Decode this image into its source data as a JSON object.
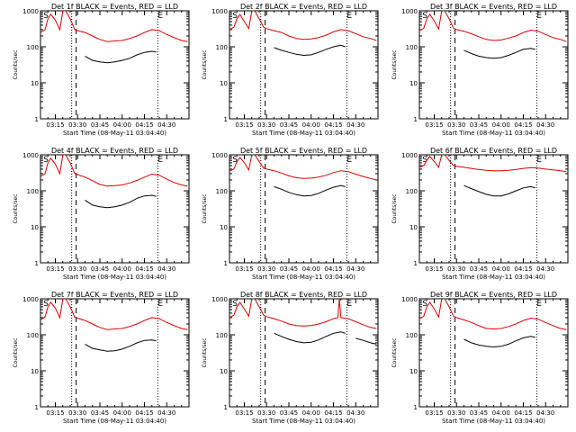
{
  "chart_data": {
    "type": "line",
    "shared": {
      "xlabel": "Start Time (08-May-11 03:04:40)",
      "ylabel": "Counts/sec",
      "xticks": [
        "03:15",
        "03:30",
        "03:45",
        "04:00",
        "04:15",
        "04:30"
      ],
      "xtick_minutes": [
        15,
        30,
        45,
        60,
        75,
        90
      ],
      "xlim_minutes": [
        5,
        105
      ],
      "yscale": "log",
      "ylim": [
        1,
        1000
      ],
      "yticks": [
        "1",
        "10",
        "100",
        "1000"
      ],
      "marker_labels": [
        "S",
        "E"
      ],
      "colors": {
        "events": "#000000",
        "lld": "#dd0000"
      }
    },
    "panels": [
      {
        "title": "Det 1f BLACK = Events, RED = LLD",
        "dotted_lines": [
          26,
          84
        ],
        "dashed_line": 29,
        "s_minute": 7,
        "e_minute": 84,
        "series": [
          {
            "name": "Events",
            "x": [
              29,
              35,
              40,
              45,
              50,
              55,
              60,
              65,
              70,
              75,
              80,
              83
            ],
            "y": [
              null,
              55,
              42,
              38,
              36,
              38,
              42,
              48,
              60,
              70,
              75,
              72
            ]
          },
          {
            "name": "LLD",
            "x": [
              5,
              8,
              10,
              12,
              15,
              18,
              20,
              22,
              25,
              28,
              30,
              35,
              40,
              45,
              50,
              55,
              60,
              65,
              70,
              75,
              80,
              85,
              90,
              95,
              100,
              104
            ],
            "y": [
              250,
              300,
              600,
              800,
              550,
              300,
              1000,
              1000,
              600,
              300,
              280,
              250,
              200,
              160,
              140,
              145,
              150,
              170,
              200,
              250,
              300,
              280,
              220,
              180,
              150,
              140
            ]
          }
        ]
      },
      {
        "title": "Det 2f BLACK = Events, RED = LLD",
        "dotted_lines": [
          26,
          84
        ],
        "dashed_line": 29,
        "s_minute": 7,
        "e_minute": 84,
        "series": [
          {
            "name": "Events",
            "x": [
              29,
              35,
              40,
              45,
              50,
              55,
              60,
              65,
              70,
              75,
              80,
              83
            ],
            "y": [
              null,
              95,
              80,
              70,
              62,
              58,
              60,
              70,
              85,
              100,
              110,
              100
            ]
          },
          {
            "name": "LLD",
            "x": [
              5,
              8,
              10,
              12,
              15,
              18,
              20,
              22,
              25,
              28,
              30,
              35,
              40,
              45,
              50,
              55,
              60,
              65,
              70,
              75,
              80,
              85,
              90,
              95,
              100,
              104
            ],
            "y": [
              300,
              350,
              600,
              800,
              500,
              320,
              1000,
              1000,
              600,
              350,
              320,
              280,
              250,
              200,
              170,
              160,
              165,
              180,
              210,
              260,
              300,
              280,
              230,
              190,
              170,
              150
            ]
          }
        ]
      },
      {
        "title": "Det 3f BLACK = Events, RED = LLD",
        "dotted_lines": [
          26,
          84
        ],
        "dashed_line": 29,
        "s_minute": 7,
        "e_minute": 84,
        "series": [
          {
            "name": "Events",
            "x": [
              29,
              35,
              40,
              45,
              50,
              55,
              60,
              65,
              70,
              75,
              80,
              83
            ],
            "y": [
              null,
              80,
              65,
              55,
              50,
              48,
              50,
              58,
              70,
              85,
              90,
              85
            ]
          },
          {
            "name": "LLD",
            "x": [
              5,
              8,
              10,
              12,
              15,
              18,
              20,
              22,
              25,
              28,
              30,
              35,
              40,
              45,
              50,
              55,
              60,
              65,
              70,
              75,
              80,
              85,
              90,
              95,
              100,
              104
            ],
            "y": [
              280,
              330,
              600,
              800,
              520,
              310,
              1000,
              1000,
              600,
              330,
              300,
              270,
              230,
              190,
              160,
              150,
              155,
              175,
              200,
              250,
              290,
              270,
              220,
              180,
              160,
              140
            ]
          }
        ]
      },
      {
        "title": "Det 4f BLACK = Events, RED = LLD",
        "dotted_lines": [
          26,
          84
        ],
        "dashed_line": 29,
        "s_minute": 7,
        "e_minute": 84,
        "series": [
          {
            "name": "Events",
            "x": [
              29,
              35,
              40,
              45,
              50,
              55,
              60,
              65,
              70,
              75,
              80,
              83
            ],
            "y": [
              null,
              55,
              40,
              36,
              34,
              36,
              40,
              48,
              62,
              72,
              75,
              70
            ]
          },
          {
            "name": "LLD",
            "x": [
              5,
              8,
              10,
              12,
              15,
              18,
              20,
              22,
              25,
              28,
              30,
              35,
              40,
              45,
              50,
              55,
              60,
              65,
              70,
              75,
              80,
              85,
              90,
              95,
              100,
              104
            ],
            "y": [
              250,
              300,
              600,
              800,
              550,
              300,
              1000,
              1000,
              600,
              300,
              280,
              240,
              190,
              150,
              135,
              140,
              145,
              165,
              195,
              240,
              290,
              270,
              210,
              170,
              145,
              135
            ]
          }
        ]
      },
      {
        "title": "Det 5f BLACK = Events, RED = LLD",
        "dotted_lines": [
          26,
          84
        ],
        "dashed_line": 29,
        "s_minute": 7,
        "e_minute": 84,
        "series": [
          {
            "name": "Events",
            "x": [
              29,
              35,
              40,
              45,
              50,
              55,
              60,
              65,
              70,
              75,
              80,
              83
            ],
            "y": [
              null,
              130,
              110,
              90,
              78,
              72,
              74,
              85,
              105,
              125,
              140,
              130
            ]
          },
          {
            "name": "LLD",
            "x": [
              5,
              8,
              10,
              12,
              15,
              18,
              20,
              22,
              25,
              28,
              30,
              35,
              40,
              45,
              50,
              55,
              60,
              65,
              70,
              75,
              80,
              85,
              90,
              95,
              100,
              104
            ],
            "y": [
              350,
              400,
              650,
              850,
              600,
              380,
              1000,
              1000,
              650,
              430,
              400,
              360,
              310,
              260,
              230,
              220,
              225,
              240,
              270,
              320,
              360,
              340,
              290,
              250,
              220,
              200
            ]
          }
        ]
      },
      {
        "title": "Det 6f BLACK = Events, RED = LLD",
        "dotted_lines": [
          26,
          84
        ],
        "dashed_line": 29,
        "s_minute": 7,
        "e_minute": 84,
        "series": [
          {
            "name": "Events",
            "x": [
              29,
              35,
              40,
              45,
              50,
              55,
              60,
              65,
              70,
              75,
              80,
              83
            ],
            "y": [
              null,
              140,
              115,
              95,
              80,
              72,
              72,
              82,
              100,
              120,
              130,
              120
            ]
          },
          {
            "name": "LLD",
            "x": [
              5,
              8,
              10,
              12,
              15,
              18,
              20,
              22,
              25,
              28,
              30,
              35,
              40,
              45,
              50,
              55,
              60,
              65,
              70,
              75,
              80,
              85,
              90,
              95,
              100,
              104
            ],
            "y": [
              450,
              500,
              700,
              900,
              650,
              450,
              1000,
              1000,
              700,
              500,
              480,
              450,
              420,
              390,
              370,
              360,
              360,
              370,
              390,
              420,
              440,
              430,
              400,
              380,
              360,
              340
            ]
          }
        ]
      },
      {
        "title": "Det 7f BLACK = Events, RED = LLD",
        "dotted_lines": [
          26,
          84
        ],
        "dashed_line": 29,
        "s_minute": 7,
        "e_minute": 84,
        "series": [
          {
            "name": "Events",
            "x": [
              29,
              35,
              40,
              45,
              50,
              55,
              60,
              65,
              70,
              75,
              80,
              83
            ],
            "y": [
              null,
              55,
              42,
              38,
              35,
              36,
              40,
              48,
              60,
              70,
              72,
              68
            ]
          },
          {
            "name": "LLD",
            "x": [
              5,
              8,
              10,
              12,
              15,
              18,
              20,
              22,
              25,
              28,
              30,
              35,
              40,
              45,
              50,
              55,
              60,
              65,
              70,
              75,
              80,
              85,
              90,
              95,
              100,
              104
            ],
            "y": [
              260,
              310,
              600,
              800,
              550,
              300,
              1000,
              1000,
              600,
              310,
              290,
              250,
              200,
              160,
              140,
              145,
              150,
              170,
              200,
              250,
              300,
              280,
              220,
              180,
              150,
              140
            ]
          }
        ]
      },
      {
        "title": "Det 8f BLACK = Events, RED = LLD",
        "dotted_lines": [
          26,
          84
        ],
        "dashed_line": 29,
        "s_minute": 7,
        "e_minute": 84,
        "series": [
          {
            "name": "Events",
            "x": [
              29,
              35,
              40,
              45,
              50,
              55,
              60,
              65,
              70,
              75,
              80,
              83,
              86,
              90,
              95,
              100,
              104
            ],
            "y": [
              null,
              110,
              90,
              75,
              65,
              60,
              62,
              72,
              90,
              110,
              120,
              110,
              null,
              80,
              70,
              60,
              55
            ]
          },
          {
            "name": "LLD",
            "x": [
              5,
              8,
              10,
              12,
              15,
              18,
              20,
              22,
              25,
              28,
              30,
              35,
              40,
              45,
              50,
              55,
              60,
              65,
              70,
              75,
              78,
              79,
              80,
              85,
              90,
              95,
              100,
              104
            ],
            "y": [
              300,
              350,
              600,
              800,
              520,
              330,
              1000,
              1000,
              600,
              350,
              320,
              280,
              240,
              200,
              180,
              175,
              180,
              200,
              230,
              280,
              300,
              1000,
              300,
              280,
              230,
              190,
              160,
              150
            ]
          }
        ]
      },
      {
        "title": "Det 9f BLACK = Events, RED = LLD",
        "dotted_lines": [
          26,
          84
        ],
        "dashed_line": 29,
        "s_minute": 7,
        "e_minute": 84,
        "series": [
          {
            "name": "Events",
            "x": [
              29,
              35,
              40,
              45,
              50,
              55,
              60,
              65,
              70,
              75,
              80,
              83
            ],
            "y": [
              null,
              75,
              60,
              52,
              48,
              46,
              48,
              55,
              68,
              82,
              90,
              85
            ]
          },
          {
            "name": "LLD",
            "x": [
              5,
              8,
              10,
              12,
              15,
              18,
              20,
              22,
              25,
              28,
              30,
              35,
              40,
              45,
              50,
              55,
              60,
              65,
              70,
              75,
              80,
              85,
              90,
              95,
              100,
              104
            ],
            "y": [
              280,
              330,
              600,
              800,
              520,
              310,
              1000,
              1000,
              600,
              330,
              300,
              260,
              220,
              180,
              150,
              145,
              150,
              170,
              200,
              250,
              290,
              270,
              220,
              180,
              150,
              140
            ]
          }
        ]
      }
    ]
  }
}
